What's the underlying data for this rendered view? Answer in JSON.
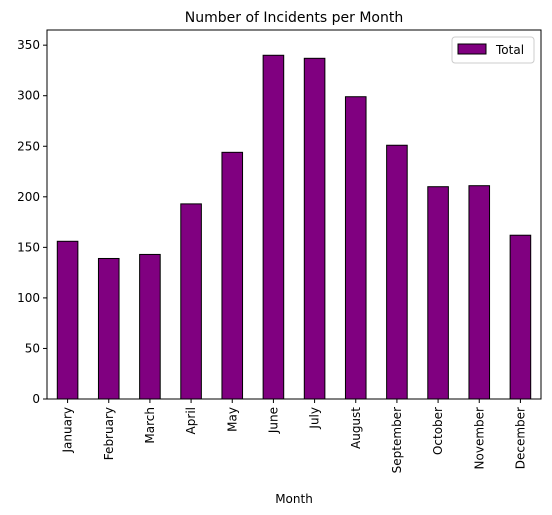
{
  "chart_data": {
    "type": "bar",
    "title": "Number of Incidents per Month",
    "xlabel": "Month",
    "ylabel": "",
    "categories": [
      "January",
      "February",
      "March",
      "April",
      "May",
      "June",
      "July",
      "August",
      "September",
      "October",
      "November",
      "December"
    ],
    "series": [
      {
        "name": "Total",
        "values": [
          156,
          139,
          143,
          193,
          244,
          340,
          337,
          299,
          251,
          210,
          211,
          162
        ]
      }
    ],
    "ylim": [
      0,
      365
    ],
    "yticks": [
      0,
      50,
      100,
      150,
      200,
      250,
      300,
      350
    ],
    "grid": false,
    "legend_position": "top-right",
    "colors": {
      "bar_fill": "#800080",
      "bar_edge": "#000000"
    }
  }
}
